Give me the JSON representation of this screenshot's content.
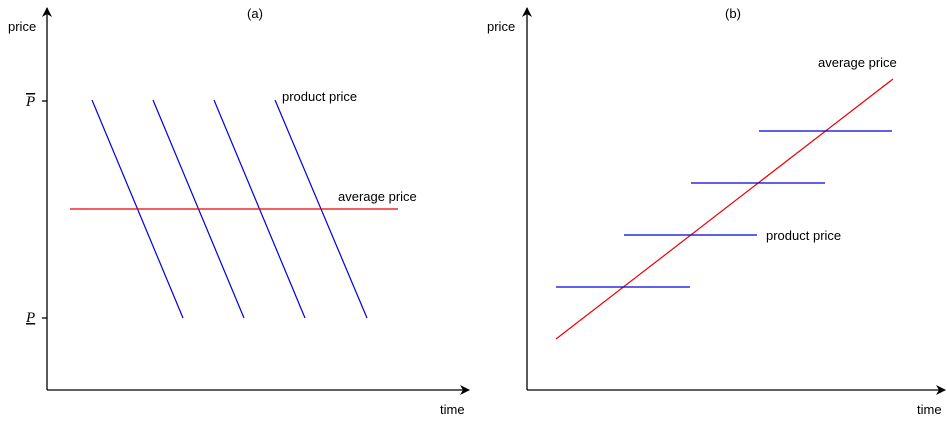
{
  "panels": [
    {
      "label": "(a)",
      "y_axis": "price",
      "x_axis": "time",
      "y_ticks": [
        "P",
        "P"
      ],
      "line_labels": {
        "product": "product price",
        "average": "average price"
      }
    },
    {
      "label": "(b)",
      "y_axis": "price",
      "x_axis": "time",
      "line_labels": {
        "product": "product price",
        "average": "average price"
      }
    }
  ]
}
